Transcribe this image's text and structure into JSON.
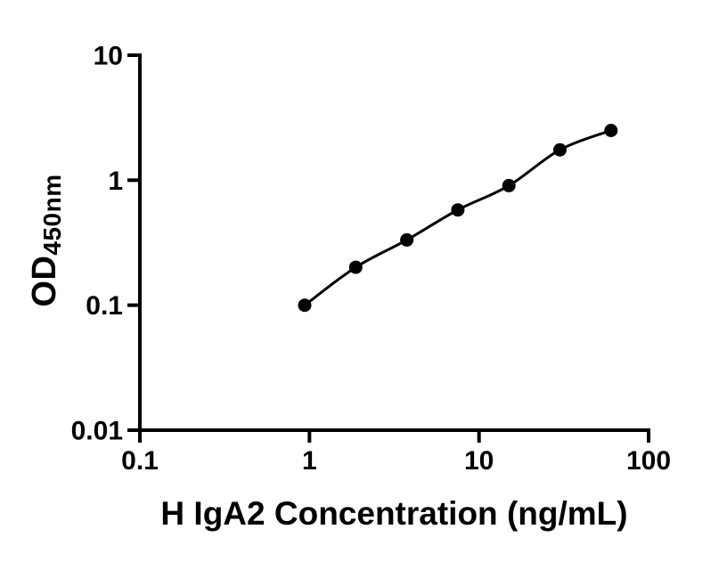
{
  "chart_data": {
    "type": "scatter",
    "subtype": "standard-curve-with-fit-line",
    "xlabel": "H IgA2 Concentration (ng/mL)",
    "ylabel_main": "OD",
    "ylabel_subscript": "450nm",
    "x_scale": "log",
    "y_scale": "log",
    "xlim": [
      0.1,
      100
    ],
    "ylim": [
      0.01,
      10
    ],
    "x_ticks": [
      {
        "value": 0.1,
        "label": "0.1"
      },
      {
        "value": 1,
        "label": "1"
      },
      {
        "value": 10,
        "label": "10"
      },
      {
        "value": 100,
        "label": "100"
      }
    ],
    "y_ticks": [
      {
        "value": 0.01,
        "label": "0.01"
      },
      {
        "value": 0.1,
        "label": "0.1"
      },
      {
        "value": 1,
        "label": "1"
      },
      {
        "value": 10,
        "label": "10"
      }
    ],
    "points": [
      {
        "x": 0.938,
        "y": 0.1
      },
      {
        "x": 1.875,
        "y": 0.201
      },
      {
        "x": 3.75,
        "y": 0.333
      },
      {
        "x": 7.5,
        "y": 0.578
      },
      {
        "x": 15,
        "y": 0.905
      },
      {
        "x": 30,
        "y": 1.75
      },
      {
        "x": 60,
        "y": 2.5
      }
    ],
    "legend": null,
    "grid": false,
    "colors": {
      "foreground": "#000000",
      "background": "#ffffff"
    }
  }
}
